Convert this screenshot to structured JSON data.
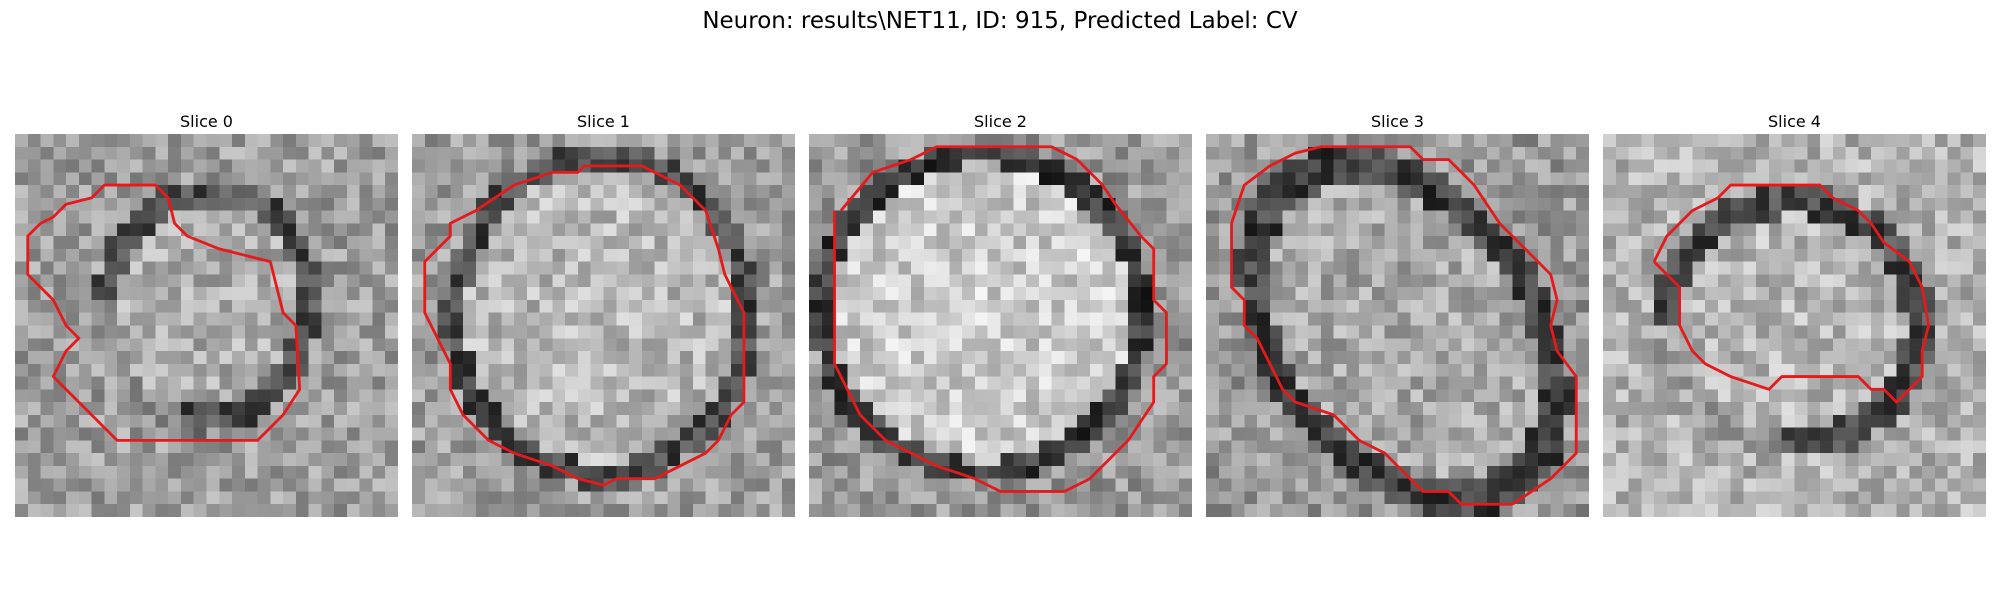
{
  "figure": {
    "title": "Neuron: results\\NET11, ID: 915, Predicted Label: CV"
  },
  "panels": [
    {
      "title": "Slice 0",
      "contour_color": "#e41a1c",
      "image_kind": "grayscale-noise-blob",
      "dark_ring": "partial"
    },
    {
      "title": "Slice 1",
      "contour_color": "#e41a1c",
      "image_kind": "grayscale-noise-blob",
      "dark_ring": "full"
    },
    {
      "title": "Slice 2",
      "contour_color": "#e41a1c",
      "image_kind": "grayscale-noise-blob",
      "dark_ring": "full"
    },
    {
      "title": "Slice 3",
      "contour_color": "#e41a1c",
      "image_kind": "grayscale-noise-blob",
      "dark_ring": "full"
    },
    {
      "title": "Slice 4",
      "contour_color": "#e41a1c",
      "image_kind": "grayscale-noise-blob",
      "dark_ring": "partial"
    }
  ]
}
